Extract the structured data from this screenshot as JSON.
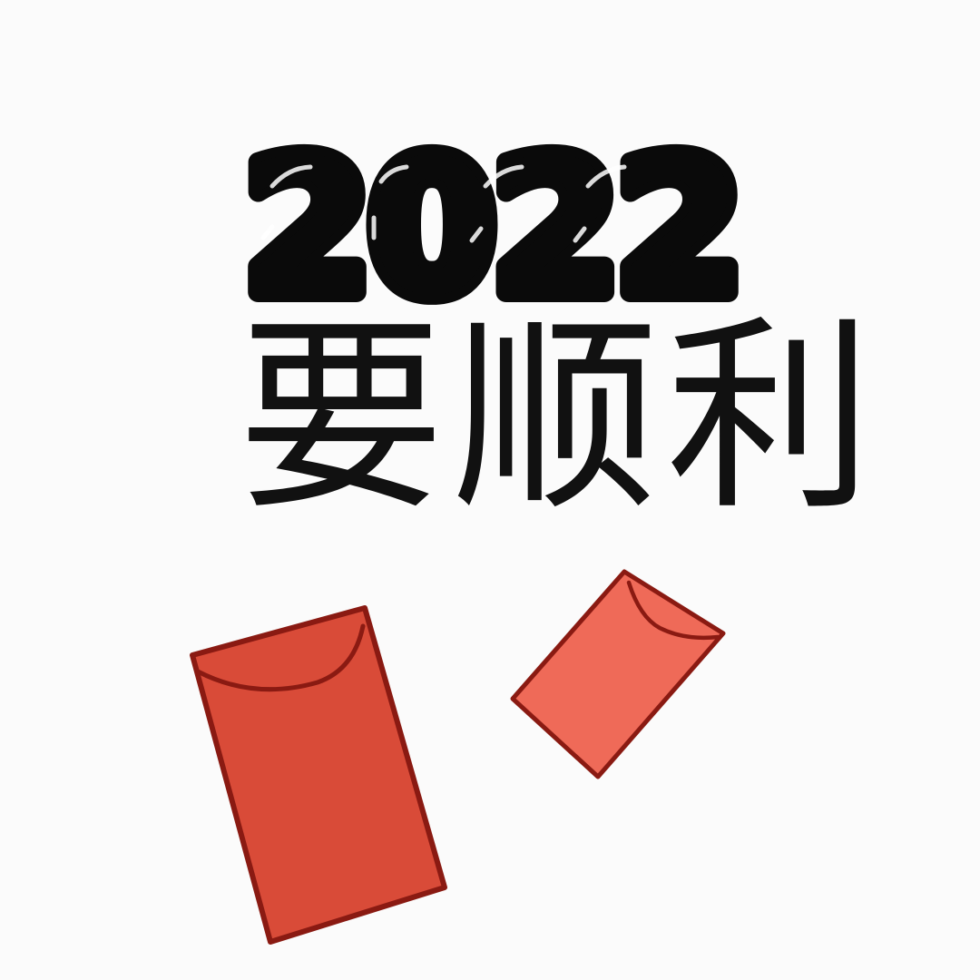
{
  "year_text": "2022",
  "phrase_text": "要顺利",
  "colors": {
    "background": "#fbfbfb",
    "year_fill": "#0a0a0a",
    "phrase": "#111111",
    "envelope_large": "#d94b38",
    "envelope_small": "#ef6a58",
    "envelope_outline": "#8a1a12"
  }
}
